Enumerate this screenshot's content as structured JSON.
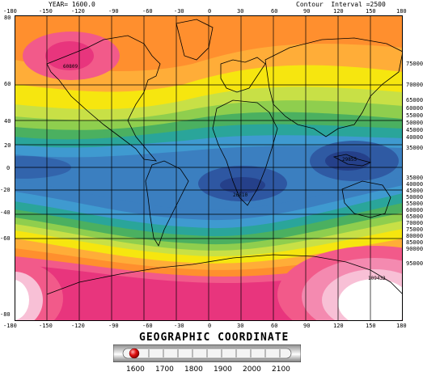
{
  "header": {
    "year_text": "YEAR= 1600.0",
    "contour_text": "Contour  Interval =2500"
  },
  "map": {
    "lon_ticks_top": [
      "-180",
      "-150",
      "-120",
      "-90",
      "-60",
      "-30",
      "0",
      "30",
      "60",
      "90",
      "120",
      "150",
      "180"
    ],
    "lon_ticks_bottom": [
      "-180",
      "-150",
      "-120",
      "-90",
      "-60",
      "-30",
      "0",
      "30",
      "60",
      "90",
      "120",
      "150",
      "180"
    ],
    "lat_ticks": [
      "80",
      "60",
      "40",
      "20",
      "0",
      "-20",
      "-40",
      "-60",
      "-80"
    ],
    "annotations": [
      {
        "text": "60809",
        "name": "max-north-label"
      },
      {
        "text": "26810",
        "name": "min-africa-label"
      },
      {
        "text": "29855",
        "name": "min-pacific-label"
      },
      {
        "text": "109432",
        "name": "max-south-label"
      }
    ],
    "contour_labels_right": [
      "75000",
      "70000",
      "65000",
      "60000",
      "55000",
      "50000",
      "45000",
      "40000",
      "35000",
      "35000",
      "40000",
      "45000",
      "50000",
      "55000",
      "60000",
      "65000",
      "70000",
      "75000",
      "80000",
      "85000",
      "90000",
      "95000"
    ],
    "palette": {
      "magenta": "#e8357d",
      "pink": "#f25a8a",
      "orange": "#ff9a2c",
      "yellow": "#f6e60f",
      "yellow_green": "#c8e046",
      "green": "#4bb060",
      "teal": "#2aa59a",
      "blue": "#3b7fc0",
      "dark_blue": "#2c4e9a",
      "white": "#ffffff"
    }
  },
  "footer": {
    "title": "GEOGRAPHIC COORDINATE",
    "slider": {
      "value_year": 1600,
      "min": 1600,
      "max": 2100,
      "labels": [
        "1600",
        "1700",
        "1800",
        "1900",
        "2000",
        "2100"
      ]
    }
  }
}
